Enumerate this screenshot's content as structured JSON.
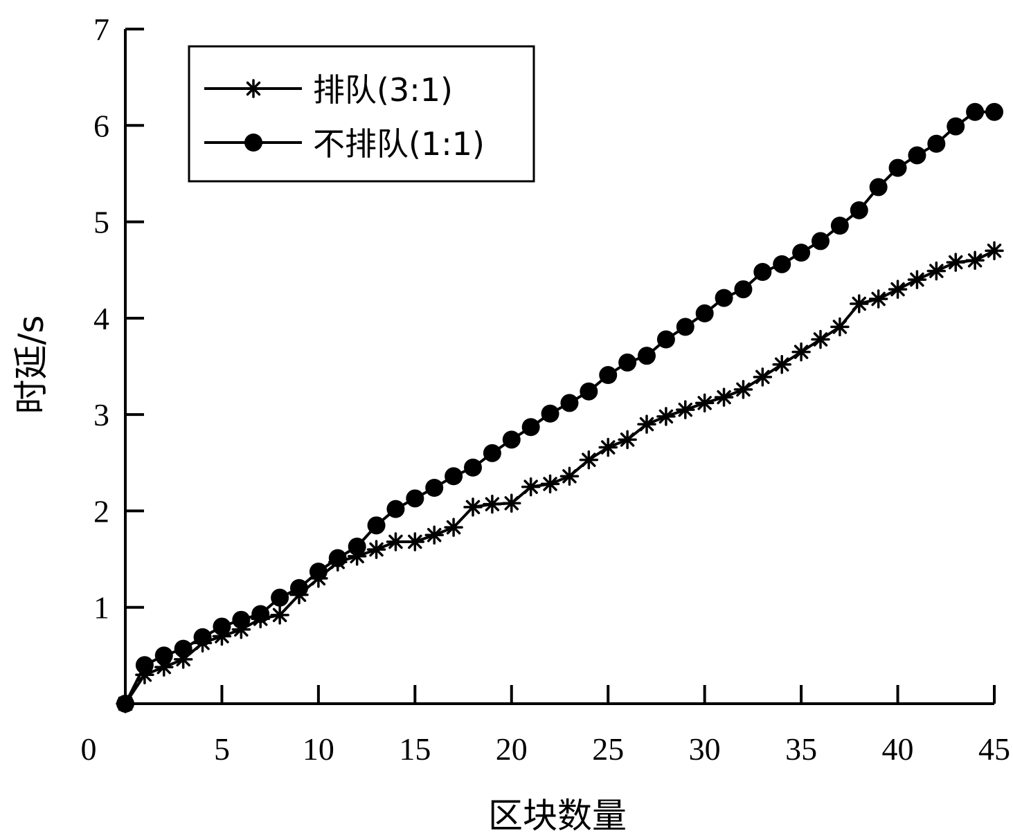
{
  "chart_data": {
    "type": "line",
    "title": "",
    "xlabel": "区块数量",
    "ylabel": "时延/s",
    "xlim": [
      0,
      45
    ],
    "ylim": [
      0,
      7
    ],
    "x_origin_label": "0",
    "x_ticks": [
      5,
      10,
      15,
      20,
      25,
      30,
      35,
      40,
      45
    ],
    "y_ticks": [
      1,
      2,
      3,
      4,
      5,
      6,
      7
    ],
    "grid": false,
    "legend_position": "top-left",
    "series": [
      {
        "name": "排队(3:1)",
        "marker": "asterisk",
        "color": "#000000",
        "x": [
          0,
          1,
          2,
          3,
          4,
          5,
          6,
          7,
          8,
          9,
          10,
          11,
          12,
          13,
          14,
          15,
          16,
          17,
          18,
          19,
          20,
          21,
          22,
          23,
          24,
          25,
          26,
          27,
          28,
          29,
          30,
          31,
          32,
          33,
          34,
          35,
          36,
          37,
          38,
          39,
          40,
          41,
          42,
          43,
          44,
          45
        ],
        "y": [
          0,
          0.3,
          0.38,
          0.46,
          0.63,
          0.7,
          0.77,
          0.88,
          0.92,
          1.13,
          1.3,
          1.47,
          1.53,
          1.6,
          1.68,
          1.68,
          1.75,
          1.83,
          2.04,
          2.07,
          2.08,
          2.25,
          2.28,
          2.36,
          2.53,
          2.66,
          2.74,
          2.9,
          2.98,
          3.05,
          3.12,
          3.18,
          3.26,
          3.39,
          3.52,
          3.65,
          3.78,
          3.91,
          4.15,
          4.2,
          4.3,
          4.4,
          4.49,
          4.58,
          4.6,
          4.7
        ]
      },
      {
        "name": "不排队(1:1)",
        "marker": "circle",
        "color": "#000000",
        "x": [
          0,
          1,
          2,
          3,
          4,
          5,
          6,
          7,
          8,
          9,
          10,
          11,
          12,
          13,
          14,
          15,
          16,
          17,
          18,
          19,
          20,
          21,
          22,
          23,
          24,
          25,
          26,
          27,
          28,
          29,
          30,
          31,
          32,
          33,
          34,
          35,
          36,
          37,
          38,
          39,
          40,
          41,
          42,
          43,
          44,
          45
        ],
        "y": [
          0,
          0.4,
          0.5,
          0.57,
          0.69,
          0.8,
          0.87,
          0.93,
          1.1,
          1.2,
          1.37,
          1.51,
          1.63,
          1.85,
          2.02,
          2.13,
          2.24,
          2.36,
          2.45,
          2.6,
          2.74,
          2.87,
          3.01,
          3.12,
          3.24,
          3.41,
          3.54,
          3.61,
          3.78,
          3.91,
          4.05,
          4.21,
          4.3,
          4.48,
          4.56,
          4.68,
          4.8,
          4.96,
          5.12,
          5.36,
          5.56,
          5.69,
          5.81,
          5.99,
          6.14,
          6.14
        ]
      }
    ]
  }
}
